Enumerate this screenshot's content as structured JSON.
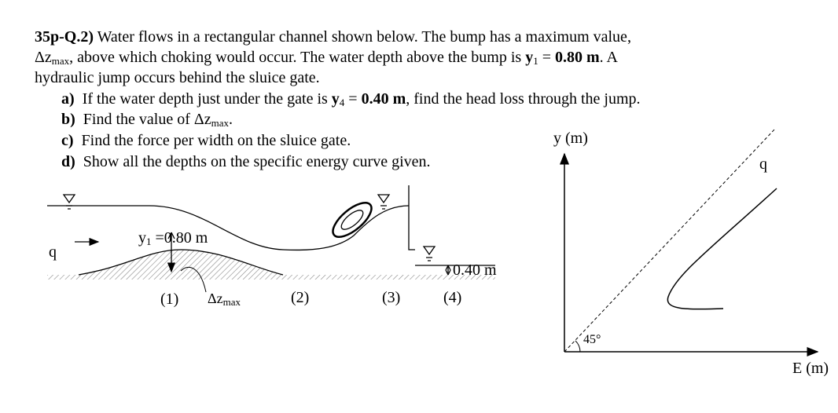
{
  "question": {
    "number": "35p-Q.2)",
    "intro": [
      "Water flows in a rectangular channel shown below. The bump has a maximum value,",
      "Δz",
      "max",
      ", above which choking would occur. The water depth above the bump is ",
      "y",
      "1",
      " = ",
      "0.80 m",
      ". A",
      "hydraulic jump occurs behind the sluice gate."
    ],
    "parts": [
      {
        "label": "a)",
        "segments": [
          "If the water depth just under the gate is ",
          "y",
          "4",
          " = ",
          "0.40 m",
          ", find the head loss through the jump."
        ]
      },
      {
        "label": "b)",
        "segments": [
          "Find the value of ",
          "Δz",
          "max",
          "."
        ]
      },
      {
        "label": "c)",
        "segments": [
          "Find the force per width on the sluice gate."
        ]
      },
      {
        "label": "d)",
        "segments": [
          "Show all the depths on the specific energy curve given."
        ]
      }
    ]
  },
  "channel": {
    "flow_label": "q",
    "depth1": {
      "symbol": "y",
      "subscript": "1",
      "equals": "=",
      "value": "0.80 m"
    },
    "depth4": "0.40 m",
    "bump_height": {
      "symbol": "Δz",
      "subscript": "max"
    },
    "sections": [
      "(1)",
      "(2)",
      "(3)",
      "(4)"
    ]
  },
  "energy_plot": {
    "y_axis": "y (m)",
    "x_axis": "E (m)",
    "curve_label": "q",
    "angle": "45°"
  }
}
